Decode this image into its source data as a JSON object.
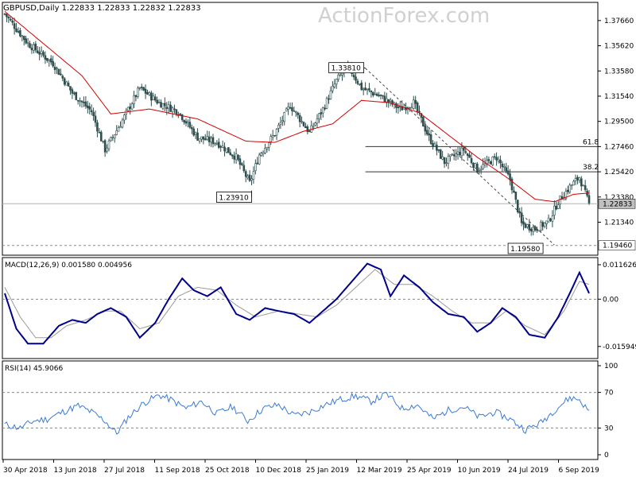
{
  "header": {
    "symbol_line": "GBPUSD,Daily  1.22833 1.22833 1.22832 1.22833",
    "watermark": "ActionForex.com"
  },
  "colors": {
    "candle": "#2f4f4f",
    "ma": "#d40000",
    "macd": "#00008b",
    "signal": "#9a9a9a",
    "rsi": "#3a7bd5",
    "level": "#333333",
    "dashed": "#888888",
    "trendline": "#444444"
  },
  "chart_data": [
    {
      "type": "candlestick",
      "title": "GBPUSD,Daily",
      "ohlc_last": [
        1.22833,
        1.22833,
        1.22832,
        1.22833
      ],
      "current_price_label": "1.22833",
      "ylim": [
        1.188,
        1.39
      ],
      "y_ticks": [
        "1.37660",
        "1.35620",
        "1.33580",
        "1.31540",
        "1.29500",
        "1.27460",
        "1.25420",
        "1.23380",
        "1.21340"
      ],
      "y_tick_values": [
        1.3766,
        1.3562,
        1.3358,
        1.3154,
        1.295,
        1.2746,
        1.2542,
        1.2338,
        1.2134
      ],
      "x_labels": [
        "30 Apr 2018",
        "13 Jun 2018",
        "27 Jul 2018",
        "11 Sep 2018",
        "25 Oct 2018",
        "10 Dec 2018",
        "25 Jan 2019",
        "12 Mar 2019",
        "25 Apr 2019",
        "10 Jun 2019",
        "24 Jul 2019",
        "6 Sep 2019"
      ],
      "close_anchors": [
        [
          0,
          1.382
        ],
        [
          12,
          1.358
        ],
        [
          25,
          1.342
        ],
        [
          35,
          1.318
        ],
        [
          45,
          1.303
        ],
        [
          52,
          1.272
        ],
        [
          60,
          1.293
        ],
        [
          70,
          1.322
        ],
        [
          80,
          1.31
        ],
        [
          90,
          1.303
        ],
        [
          100,
          1.282
        ],
        [
          110,
          1.278
        ],
        [
          120,
          1.266
        ],
        [
          127,
          1.245
        ],
        [
          132,
          1.268
        ],
        [
          140,
          1.285
        ],
        [
          148,
          1.308
        ],
        [
          158,
          1.286
        ],
        [
          165,
          1.305
        ],
        [
          172,
          1.328
        ],
        [
          178,
          1.34
        ],
        [
          185,
          1.322
        ],
        [
          195,
          1.315
        ],
        [
          205,
          1.305
        ],
        [
          212,
          1.31
        ],
        [
          220,
          1.282
        ],
        [
          228,
          1.262
        ],
        [
          238,
          1.272
        ],
        [
          245,
          1.256
        ],
        [
          255,
          1.266
        ],
        [
          262,
          1.248
        ],
        [
          268,
          1.212
        ],
        [
          275,
          1.208
        ],
        [
          282,
          1.214
        ],
        [
          287,
          1.23
        ],
        [
          293,
          1.242
        ],
        [
          298,
          1.25
        ],
        [
          303,
          1.228
        ]
      ],
      "ma_anchors": [
        [
          0,
          1.384
        ],
        [
          20,
          1.358
        ],
        [
          40,
          1.332
        ],
        [
          55,
          1.301
        ],
        [
          75,
          1.305
        ],
        [
          100,
          1.297
        ],
        [
          125,
          1.279
        ],
        [
          140,
          1.278
        ],
        [
          155,
          1.287
        ],
        [
          170,
          1.293
        ],
        [
          185,
          1.312
        ],
        [
          200,
          1.31
        ],
        [
          215,
          1.302
        ],
        [
          230,
          1.284
        ],
        [
          245,
          1.266
        ],
        [
          260,
          1.25
        ],
        [
          275,
          1.232
        ],
        [
          285,
          1.23
        ],
        [
          295,
          1.236
        ],
        [
          303,
          1.237
        ]
      ],
      "horizontal_levels": [
        {
          "value": 1.2746,
          "label": "61.8",
          "style": "solid"
        },
        {
          "value": 1.2542,
          "label": "38.2",
          "style": "solid"
        },
        {
          "value": 1.1946,
          "label": "1.19460",
          "style": "dashed"
        }
      ],
      "annotations": [
        {
          "text": "1.33810",
          "value": 1.3381,
          "index": 187
        },
        {
          "text": "1.23910",
          "value": 1.2391,
          "index": 128
        },
        {
          "text": "1.19580",
          "value": 1.1958,
          "index": 275
        }
      ],
      "trendline": [
        [
          187,
          1.338
        ],
        [
          285,
          1.195
        ]
      ]
    },
    {
      "type": "line",
      "title": "MACD(12,26,9) 0.001580 0.004956",
      "ylim": [
        -0.0195,
        0.0135
      ],
      "y_ticks": [
        "0.011626",
        "0.00",
        "-0.015949"
      ],
      "y_tick_values": [
        0.011626,
        0.0,
        -0.015949
      ],
      "macd_anchors": [
        [
          0,
          0.002
        ],
        [
          6,
          -0.01
        ],
        [
          12,
          -0.015
        ],
        [
          20,
          -0.015
        ],
        [
          28,
          -0.009
        ],
        [
          35,
          -0.007
        ],
        [
          42,
          -0.008
        ],
        [
          48,
          -0.005
        ],
        [
          55,
          -0.003
        ],
        [
          63,
          -0.006
        ],
        [
          70,
          -0.013
        ],
        [
          78,
          -0.008
        ],
        [
          85,
          0.0
        ],
        [
          92,
          0.007
        ],
        [
          98,
          0.003
        ],
        [
          105,
          0.001
        ],
        [
          112,
          0.004
        ],
        [
          120,
          -0.005
        ],
        [
          127,
          -0.007
        ],
        [
          135,
          -0.003
        ],
        [
          142,
          -0.004
        ],
        [
          150,
          -0.005
        ],
        [
          158,
          -0.008
        ],
        [
          165,
          -0.004
        ],
        [
          172,
          0.0
        ],
        [
          180,
          0.006
        ],
        [
          188,
          0.012
        ],
        [
          195,
          0.01
        ],
        [
          200,
          0.001
        ],
        [
          207,
          0.008
        ],
        [
          215,
          0.004
        ],
        [
          222,
          -0.001
        ],
        [
          230,
          -0.005
        ],
        [
          238,
          -0.006
        ],
        [
          245,
          -0.011
        ],
        [
          252,
          -0.008
        ],
        [
          258,
          -0.003
        ],
        [
          265,
          -0.006
        ],
        [
          272,
          -0.012
        ],
        [
          280,
          -0.013
        ],
        [
          287,
          -0.006
        ],
        [
          293,
          0.002
        ],
        [
          298,
          0.009
        ],
        [
          303,
          0.002
        ]
      ],
      "signal_anchors": [
        [
          0,
          0.004
        ],
        [
          8,
          -0.006
        ],
        [
          16,
          -0.013
        ],
        [
          24,
          -0.013
        ],
        [
          32,
          -0.009
        ],
        [
          42,
          -0.007
        ],
        [
          52,
          -0.004
        ],
        [
          60,
          -0.004
        ],
        [
          70,
          -0.01
        ],
        [
          80,
          -0.008
        ],
        [
          90,
          0.001
        ],
        [
          100,
          0.004
        ],
        [
          110,
          0.003
        ],
        [
          120,
          -0.002
        ],
        [
          130,
          -0.006
        ],
        [
          142,
          -0.004
        ],
        [
          152,
          -0.005
        ],
        [
          162,
          -0.006
        ],
        [
          172,
          -0.002
        ],
        [
          182,
          0.004
        ],
        [
          192,
          0.01
        ],
        [
          202,
          0.005
        ],
        [
          212,
          0.005
        ],
        [
          222,
          0.001
        ],
        [
          232,
          -0.004
        ],
        [
          242,
          -0.008
        ],
        [
          252,
          -0.008
        ],
        [
          260,
          -0.004
        ],
        [
          270,
          -0.009
        ],
        [
          280,
          -0.012
        ],
        [
          290,
          -0.004
        ],
        [
          298,
          0.006
        ],
        [
          303,
          0.005
        ]
      ]
    },
    {
      "type": "line",
      "title": "RSI(14) 45.9066",
      "ylim": [
        0,
        100
      ],
      "y_ticks": [
        "100",
        "70",
        "30",
        "0"
      ],
      "y_tick_values": [
        100,
        70,
        30,
        0
      ],
      "dashed_levels": [
        70,
        30
      ],
      "rsi_anchors": [
        [
          0,
          34
        ],
        [
          8,
          30
        ],
        [
          15,
          38
        ],
        [
          22,
          40
        ],
        [
          30,
          48
        ],
        [
          38,
          55
        ],
        [
          45,
          48
        ],
        [
          52,
          38
        ],
        [
          58,
          24
        ],
        [
          64,
          42
        ],
        [
          72,
          58
        ],
        [
          80,
          67
        ],
        [
          86,
          62
        ],
        [
          94,
          52
        ],
        [
          102,
          60
        ],
        [
          110,
          46
        ],
        [
          118,
          54
        ],
        [
          126,
          38
        ],
        [
          134,
          52
        ],
        [
          142,
          56
        ],
        [
          150,
          44
        ],
        [
          158,
          48
        ],
        [
          166,
          56
        ],
        [
          174,
          62
        ],
        [
          182,
          66
        ],
        [
          190,
          60
        ],
        [
          198,
          68
        ],
        [
          206,
          52
        ],
        [
          214,
          56
        ],
        [
          222,
          40
        ],
        [
          230,
          50
        ],
        [
          238,
          54
        ],
        [
          246,
          42
        ],
        [
          254,
          48
        ],
        [
          262,
          40
        ],
        [
          270,
          28
        ],
        [
          278,
          36
        ],
        [
          286,
          52
        ],
        [
          293,
          64
        ],
        [
          298,
          62
        ],
        [
          303,
          48
        ]
      ]
    }
  ]
}
